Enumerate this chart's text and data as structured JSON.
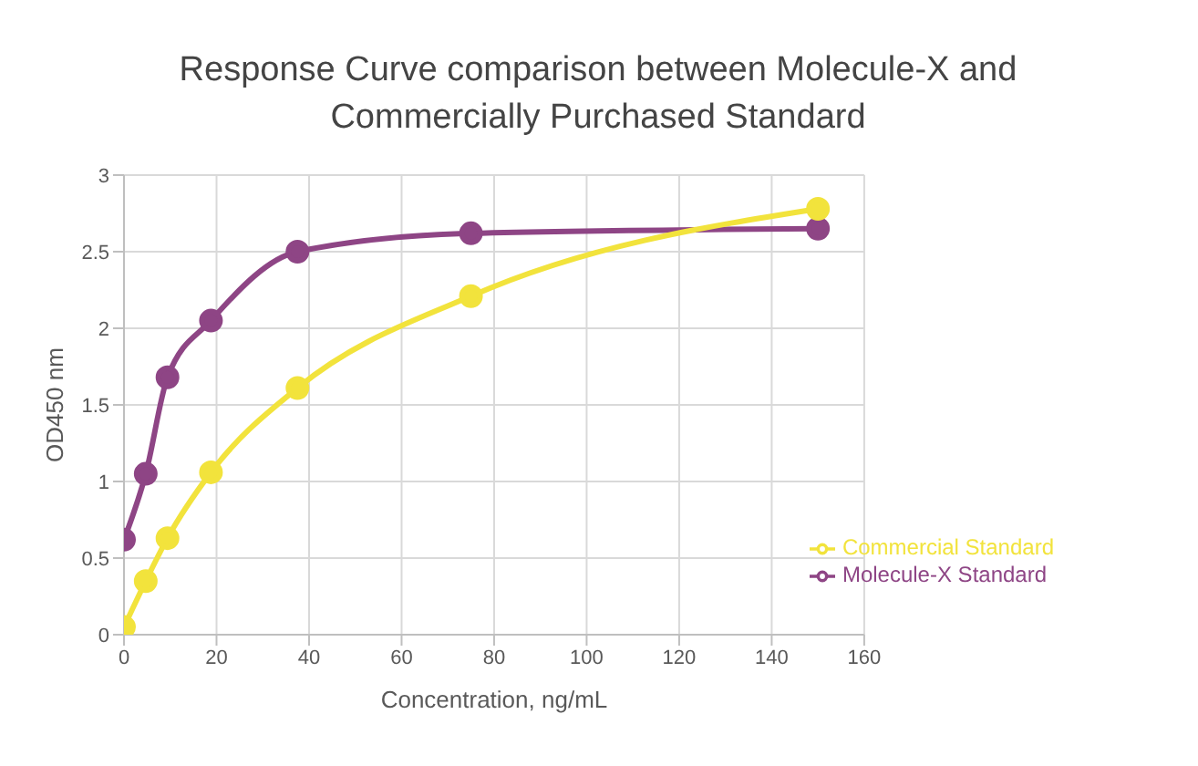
{
  "chart_data": {
    "type": "line",
    "title": "Response Curve comparison between Molecule-X and Commercially Purchased Standard",
    "xlabel": "Concentration, ng/mL",
    "ylabel": "OD450 nm",
    "xlim": [
      0,
      160
    ],
    "xticks": [
      0,
      20,
      40,
      60,
      80,
      100,
      120,
      140,
      160
    ],
    "ylim": [
      0,
      3
    ],
    "yticks": [
      0,
      0.5,
      1,
      1.5,
      2,
      2.5,
      3
    ],
    "grid": true,
    "legend": "bottom right",
    "marker": "circle",
    "line_style": "solid",
    "x": [
      0,
      4.7,
      9.4,
      18.8,
      37.5,
      75,
      150
    ],
    "series": [
      {
        "name": "Molecule-X Standard",
        "color": "#8e4585",
        "values": [
          0.62,
          1.05,
          1.68,
          2.05,
          2.5,
          2.62,
          2.65
        ]
      },
      {
        "name": "Commercial Standard",
        "color": "#f2e33c",
        "values": [
          0.05,
          0.35,
          0.63,
          1.06,
          1.61,
          2.21,
          2.78
        ]
      }
    ]
  }
}
